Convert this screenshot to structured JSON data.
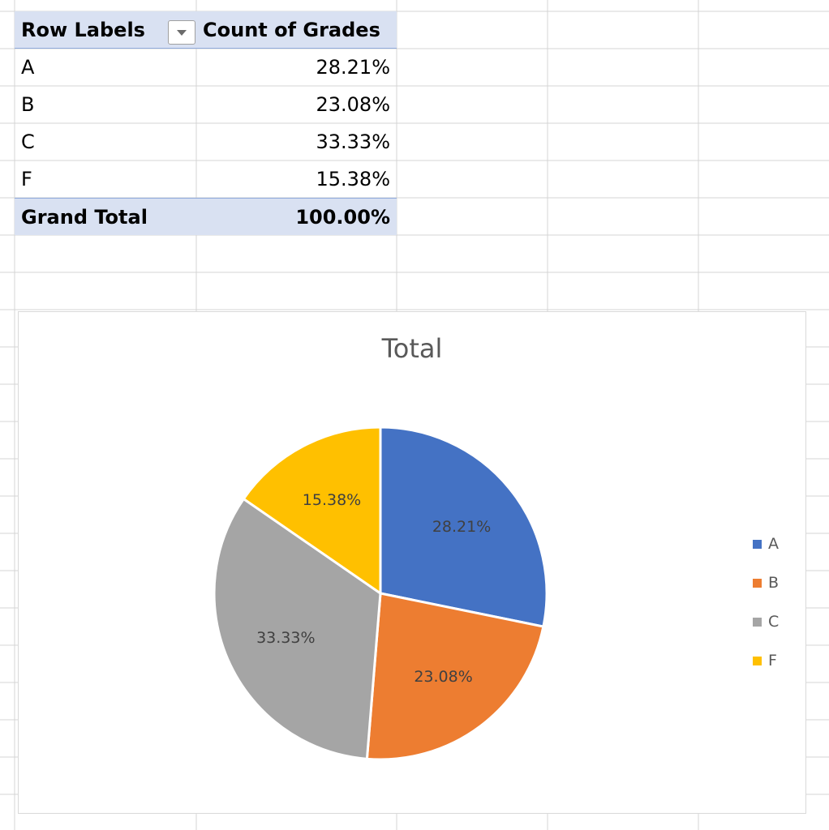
{
  "pivot": {
    "header": {
      "row_labels": "Row Labels",
      "value_field": "Count of Grades"
    },
    "rows": [
      {
        "label": "A",
        "value": "28.21%"
      },
      {
        "label": "B",
        "value": "23.08%"
      },
      {
        "label": "C",
        "value": "33.33%"
      },
      {
        "label": "F",
        "value": "15.38%"
      }
    ],
    "total": {
      "label": "Grand Total",
      "value": "100.00%"
    },
    "filter_icon": "dropdown-arrow-icon"
  },
  "chart_data": {
    "type": "pie",
    "title": "Total",
    "categories": [
      "A",
      "B",
      "C",
      "F"
    ],
    "values": [
      28.21,
      23.08,
      33.33,
      15.38
    ],
    "data_labels": [
      "28.21%",
      "23.08%",
      "33.33%",
      "15.38%"
    ],
    "colors": [
      "#4472c4",
      "#ed7d31",
      "#a5a5a5",
      "#ffc000"
    ],
    "legend": "right",
    "legend_entries": [
      "A",
      "B",
      "C",
      "F"
    ]
  }
}
